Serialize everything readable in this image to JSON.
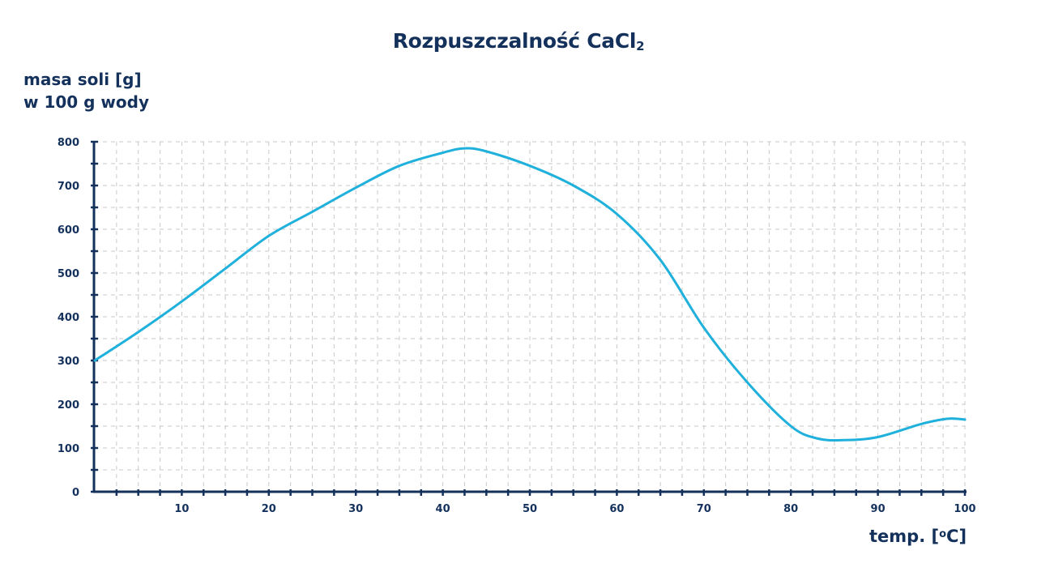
{
  "chart_data": {
    "type": "line",
    "title": "Rozpuszczalność CaCl₂",
    "title_main": "Rozpuszczalność CaCl",
    "title_sub": "2",
    "ylabel_line1": "masa soli [g]",
    "ylabel_line2": "w 100 g wody",
    "xlabel_prefix": "temp. [",
    "xlabel_sup": "o",
    "xlabel_suffix": "C]",
    "xlabel": "temp. [°C]",
    "ylabel": "masa soli [g] w 100 g wody",
    "xlim": [
      0,
      100
    ],
    "ylim": [
      0,
      800
    ],
    "x_ticks": [
      10,
      20,
      30,
      40,
      50,
      60,
      70,
      80,
      90,
      100
    ],
    "y_ticks": [
      0,
      100,
      200,
      300,
      400,
      500,
      600,
      700,
      800
    ],
    "grid": true,
    "legend": null,
    "series": [
      {
        "name": "CaCl2",
        "color": "#1fb0dc",
        "x": [
          0,
          5,
          10,
          15,
          20,
          25,
          30,
          35,
          40,
          42.5,
          45,
          50,
          55,
          60,
          65,
          70,
          75,
          80,
          83,
          86,
          90,
          95,
          98,
          100
        ],
        "y": [
          300,
          365,
          435,
          510,
          585,
          640,
          695,
          745,
          775,
          785,
          778,
          745,
          700,
          635,
          530,
          375,
          250,
          150,
          122,
          118,
          125,
          155,
          167,
          165
        ]
      }
    ]
  },
  "colors": {
    "axis": "#14315c",
    "text": "#14315c",
    "line": "#1fb0dc",
    "grid": "#c9c9c9"
  }
}
